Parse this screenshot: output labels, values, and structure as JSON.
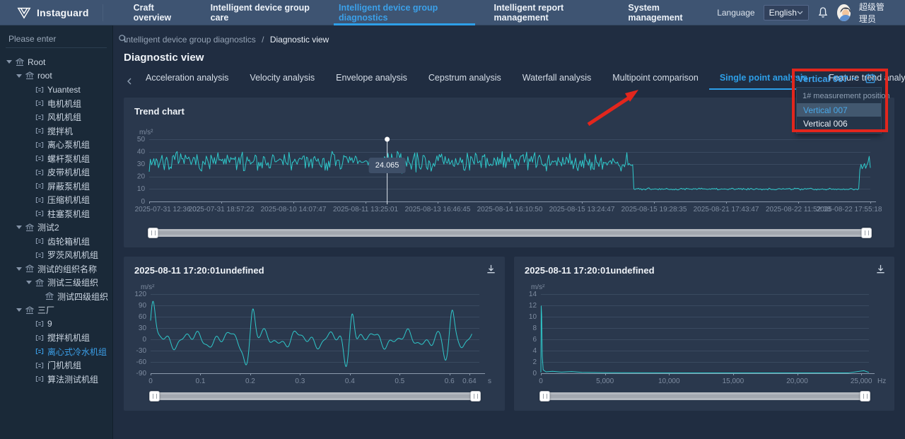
{
  "topbar": {
    "logo_text": "Instaguard",
    "menu": [
      {
        "label": "Craft overview",
        "active": false
      },
      {
        "label": "Intelligent device group care",
        "active": false
      },
      {
        "label": "Intelligent device group diagnostics",
        "active": true
      },
      {
        "label": "Intelligent report management",
        "active": false
      },
      {
        "label": "System management",
        "active": false
      }
    ],
    "language_label": "Language",
    "language_value": "English",
    "user_name": "超级管理员"
  },
  "sidebar": {
    "search_placeholder": "Please enter",
    "tree": [
      {
        "label": "Root",
        "level": 0,
        "icon": "org",
        "caret": true,
        "selected": false
      },
      {
        "label": "root",
        "level": 1,
        "icon": "org",
        "caret": true,
        "selected": false
      },
      {
        "label": "Yuantest",
        "level": 2,
        "icon": "device",
        "caret": false,
        "selected": false
      },
      {
        "label": "电机机组",
        "level": 2,
        "icon": "device",
        "caret": false,
        "selected": false
      },
      {
        "label": "风机机组",
        "level": 2,
        "icon": "device",
        "caret": false,
        "selected": false
      },
      {
        "label": "搅拌机",
        "level": 2,
        "icon": "device",
        "caret": false,
        "selected": false
      },
      {
        "label": "离心泵机组",
        "level": 2,
        "icon": "device",
        "caret": false,
        "selected": false
      },
      {
        "label": "螺杆泵机组",
        "level": 2,
        "icon": "device",
        "caret": false,
        "selected": false
      },
      {
        "label": "皮带机机组",
        "level": 2,
        "icon": "device",
        "caret": false,
        "selected": false
      },
      {
        "label": "屏蔽泵机组",
        "level": 2,
        "icon": "device",
        "caret": false,
        "selected": false
      },
      {
        "label": "压缩机机组",
        "level": 2,
        "icon": "device",
        "caret": false,
        "selected": false
      },
      {
        "label": "柱塞泵机组",
        "level": 2,
        "icon": "device",
        "caret": false,
        "selected": false
      },
      {
        "label": "测试2",
        "level": 1,
        "icon": "org",
        "caret": true,
        "selected": false
      },
      {
        "label": "齿轮箱机组",
        "level": 2,
        "icon": "device",
        "caret": false,
        "selected": false
      },
      {
        "label": "罗茨风机机组",
        "level": 2,
        "icon": "device",
        "caret": false,
        "selected": false
      },
      {
        "label": "测试的组织名称",
        "level": 1,
        "icon": "org",
        "caret": true,
        "selected": false
      },
      {
        "label": "测试三级组织",
        "level": 2,
        "icon": "org",
        "caret": true,
        "selected": false
      },
      {
        "label": "测试四级组织",
        "level": 3,
        "icon": "org",
        "caret": false,
        "selected": false
      },
      {
        "label": "三厂",
        "level": 1,
        "icon": "org",
        "caret": true,
        "selected": false
      },
      {
        "label": "9",
        "level": 2,
        "icon": "device",
        "caret": false,
        "selected": false
      },
      {
        "label": "搅拌机机组",
        "level": 2,
        "icon": "device",
        "caret": false,
        "selected": false
      },
      {
        "label": "离心式冷水机组",
        "level": 2,
        "icon": "device",
        "caret": false,
        "selected": true
      },
      {
        "label": "门机机组",
        "level": 2,
        "icon": "device",
        "caret": false,
        "selected": false
      },
      {
        "label": "算法测试机组",
        "level": 2,
        "icon": "device",
        "caret": false,
        "selected": false
      }
    ]
  },
  "breadcrumb": {
    "parent": "Intelligent device group diagnostics",
    "separator": "/",
    "current": "Diagnostic view"
  },
  "page_title": "Diagnostic view",
  "tabs": {
    "items": [
      "Acceleration analysis",
      "Velocity analysis",
      "Envelope analysis",
      "Cepstrum analysis",
      "Waterfall analysis",
      "Multipoint comparison",
      "Single point analysis",
      "Feature trend analysi"
    ],
    "active_index": 6
  },
  "point_selector": {
    "value": "Vertical 007",
    "group_label": "1# measurement position",
    "options": [
      {
        "label": "Vertical 007",
        "selected": true
      },
      {
        "label": "Vertical 006",
        "selected": false
      }
    ]
  },
  "colors": {
    "accent_blue": "#2d9fe8",
    "line_teal": "#2fc9cb",
    "annotation_red": "#e2261d"
  },
  "chart_data": [
    {
      "id": "trend",
      "type": "line",
      "title": "Trend chart",
      "ylabel": "m/s²",
      "ylim": [
        0,
        50
      ],
      "yticks": [
        0,
        10,
        20,
        30,
        40,
        50
      ],
      "xticklabels": [
        "2025-07-31 12:36:02",
        "2025-07-31 18:57:22",
        "2025-08-10 14:07:47",
        "2025-08-11 13:25:01",
        "2025-08-13 16:46:45",
        "2025-08-14 16:10:50",
        "2025-08-15 13:24:47",
        "2025-08-15 19:28:35",
        "2025-08-21 17:43:47",
        "2025-08-22 11:52:38",
        "2025-08-22 17:55:18"
      ],
      "marker": {
        "label": "24.065",
        "value": 24.065,
        "x_frac": 0.33
      },
      "series_segments": [
        {
          "x_from": 0.0,
          "x_to": 0.672,
          "mean": 32,
          "noise": 7
        },
        {
          "x_from": 0.672,
          "x_to": 0.984,
          "mean": 10,
          "noise": 0.7
        },
        {
          "x_from": 0.984,
          "x_to": 1.0,
          "mean": 30,
          "noise": 7
        }
      ],
      "n_points": 620,
      "seed": 7
    },
    {
      "id": "waveform",
      "type": "line",
      "title": "2025-08-11 17:20:01undefined",
      "ylabel": "m/s²",
      "ylim": [
        -90,
        120
      ],
      "yticks": [
        -90,
        -60,
        -30,
        0,
        30,
        60,
        90,
        120
      ],
      "xlim": [
        0,
        0.66
      ],
      "xunit": "s",
      "xticks": [
        {
          "v": 0,
          "label": "0"
        },
        {
          "v": 0.1,
          "label": "0.1"
        },
        {
          "v": 0.2,
          "label": "0.2"
        },
        {
          "v": 0.3,
          "label": "0.3"
        },
        {
          "v": 0.4,
          "label": "0.4"
        },
        {
          "v": 0.5,
          "label": "0.5"
        },
        {
          "v": 0.6,
          "label": "0.6"
        },
        {
          "v": 0.64,
          "label": "0.64"
        }
      ],
      "waveform_spec": {
        "period": 0.2,
        "impact_height": 90,
        "impact_x_offset": 0.005,
        "dip_depth": -68,
        "dip_x_offset": 0.192,
        "ripple_components": [
          [
            14,
            14
          ],
          [
            9,
            31
          ],
          [
            6,
            52
          ]
        ]
      },
      "n_points": 900
    },
    {
      "id": "spectrum",
      "type": "line",
      "title": "2025-08-11 17:20:01undefined",
      "ylabel": "m/s²",
      "ylim": [
        0,
        14
      ],
      "yticks": [
        0,
        2,
        4,
        6,
        8,
        10,
        12,
        14
      ],
      "xlim": [
        0,
        25600
      ],
      "xunit": "Hz",
      "xticks": [
        {
          "v": 0,
          "label": "0"
        },
        {
          "v": 5000,
          "label": "5,000"
        },
        {
          "v": 10000,
          "label": "10,000"
        },
        {
          "v": 15000,
          "label": "15,000"
        },
        {
          "v": 20000,
          "label": "20,000"
        },
        {
          "v": 25000,
          "label": "25,000"
        }
      ],
      "points": [
        [
          0,
          0.15
        ],
        [
          25,
          11.9
        ],
        [
          60,
          10.3
        ],
        [
          110,
          3.0
        ],
        [
          180,
          0.6
        ],
        [
          400,
          0.25
        ],
        [
          900,
          0.35
        ],
        [
          1600,
          0.2
        ],
        [
          2400,
          0.3
        ],
        [
          3200,
          0.15
        ],
        [
          5000,
          0.1
        ],
        [
          8000,
          0.08
        ],
        [
          12000,
          0.07
        ],
        [
          16000,
          0.06
        ],
        [
          20000,
          0.06
        ],
        [
          24000,
          0.07
        ],
        [
          25200,
          0.45
        ],
        [
          25600,
          0.15
        ]
      ]
    }
  ]
}
